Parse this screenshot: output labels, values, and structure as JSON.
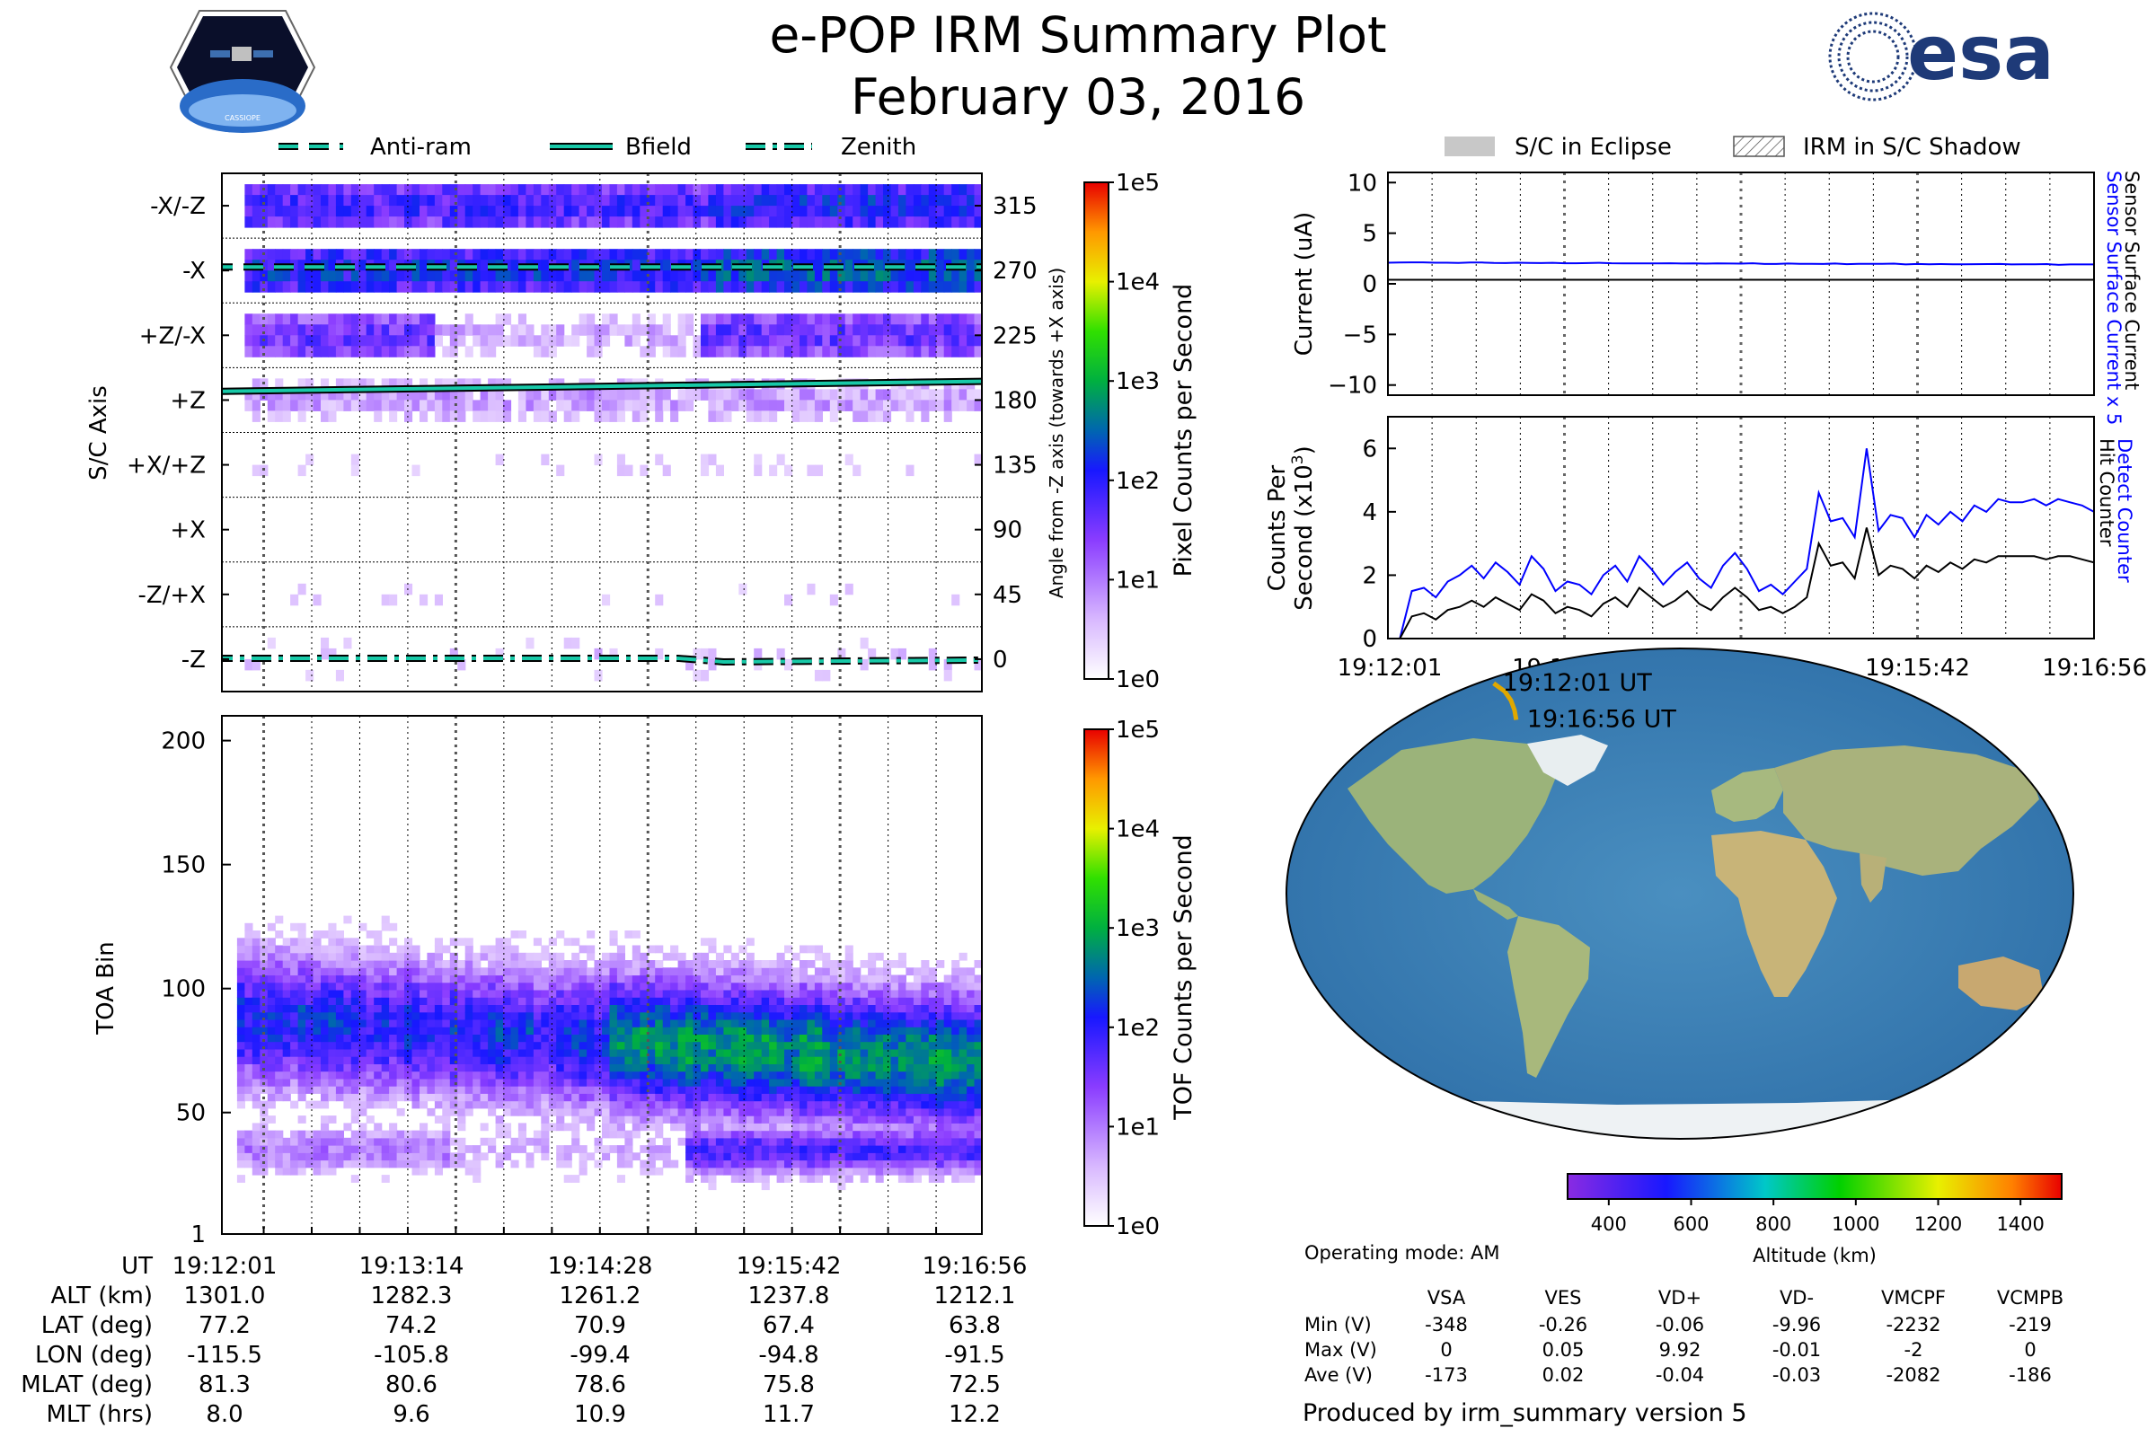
{
  "title": "e-POP IRM Summary Plot",
  "date": "February 03, 2016",
  "brand": {
    "esa_text": "esa",
    "mission_badge": "CASSIOPE",
    "esa_logo_color": "#1e3a78"
  },
  "colors": {
    "teal": "#18c9a8",
    "blue": "#0000ff",
    "black": "#000000",
    "eclipse": "#c8c8c8",
    "gold": "#e0a800"
  },
  "top_legend": [
    "Anti-ram",
    "Bfield",
    "Zenith"
  ],
  "right_legend": [
    "S/C in Eclipse",
    "IRM in S/C Shadow"
  ],
  "colorbars": {
    "pixel": {
      "label": "Pixel Counts per Second",
      "ticks": [
        "1e5",
        "1e4",
        "1e3",
        "1e2",
        "1e1",
        "1e0"
      ]
    },
    "tof": {
      "label": "TOF Counts per Second",
      "ticks": [
        "1e5",
        "1e4",
        "1e3",
        "1e2",
        "1e1",
        "1e0"
      ]
    },
    "altitude": {
      "label": "Altitude (km)",
      "ticks": [
        "400",
        "600",
        "800",
        "1000",
        "1200",
        "1400"
      ],
      "range": [
        300,
        1500
      ]
    }
  },
  "chart_data": [
    {
      "type": "heatmap",
      "name": "sc_axis",
      "ylabel": "S/C Axis",
      "y2label": "Angle from -Z axis (towards +X axis)",
      "axis_labels": [
        "-X/-Z",
        "-X",
        "+Z/-X",
        "+Z",
        "+X/+Z",
        "+X",
        "-Z/+X",
        "-Z"
      ],
      "angle_ticks": [
        315,
        270,
        225,
        180,
        135,
        90,
        45,
        0
      ],
      "row_levels": [
        1.9,
        2.2,
        1.7,
        0.8,
        0.3,
        0.05,
        0.3,
        0.5
      ],
      "antiram_deg": 270,
      "zenith_deg": 0,
      "bfield_deg": [
        [
          0,
          186
        ],
        [
          300,
          193
        ]
      ],
      "scale": "log",
      "clim": [
        1,
        100000
      ]
    },
    {
      "type": "heatmap",
      "name": "toa",
      "ylabel": "TOA Bin",
      "yticks": [
        1,
        50,
        100,
        150,
        200
      ],
      "ylim": [
        1,
        210
      ],
      "main_band": {
        "center_start": 88,
        "center_end": 70,
        "width": 35
      },
      "low_band": {
        "center": 35,
        "width": 15
      },
      "scale": "log",
      "clim": [
        1,
        100000
      ]
    },
    {
      "type": "line",
      "name": "current",
      "ylabel": "Current (uA)",
      "y2label_blue": "Sensor Surface Current x 5",
      "y2label_black": "Sensor Surface Current",
      "ylim": [
        -11,
        11
      ],
      "yticks": [
        10,
        5,
        0,
        -5,
        -10
      ],
      "series": [
        {
          "name": "Sensor Surface Current x 5",
          "color": "blue",
          "start": 2.1,
          "end": 1.9
        },
        {
          "name": "Sensor Surface Current",
          "color": "black",
          "start": 0.4,
          "end": 0.4
        }
      ]
    },
    {
      "type": "line",
      "name": "counts",
      "ylabel": "Counts Per",
      "ylabel2": "Second (x10",
      "ylabel_exp": "3",
      "y2label_blue": "Detect Counter",
      "y2label_black": "Hit Counter",
      "ylim": [
        0,
        7
      ],
      "yticks": [
        0,
        2,
        4,
        6
      ],
      "series": [
        {
          "name": "Detect Counter",
          "color": "blue",
          "values": [
            0,
            0,
            1.5,
            1.6,
            1.3,
            1.8,
            2.0,
            2.3,
            1.9,
            2.4,
            2.1,
            1.7,
            2.6,
            2.2,
            1.5,
            1.8,
            1.7,
            1.4,
            2.0,
            2.3,
            1.8,
            2.6,
            2.2,
            1.7,
            2.1,
            2.4,
            1.9,
            1.6,
            2.3,
            2.7,
            2.2,
            1.5,
            1.7,
            1.4,
            1.8,
            2.2,
            4.6,
            3.7,
            3.8,
            3.2,
            6.0,
            3.4,
            3.9,
            3.8,
            3.2,
            3.9,
            3.6,
            4.0,
            3.7,
            4.2,
            4.0,
            4.4,
            4.3,
            4.3,
            4.4,
            4.2,
            4.4,
            4.3,
            4.2,
            4.0
          ]
        },
        {
          "name": "Hit Counter",
          "color": "black",
          "values": [
            0,
            0,
            0.7,
            0.8,
            0.6,
            0.9,
            1.0,
            1.2,
            1.0,
            1.3,
            1.1,
            0.9,
            1.4,
            1.2,
            0.8,
            1.0,
            0.9,
            0.7,
            1.1,
            1.3,
            1.0,
            1.6,
            1.3,
            1.0,
            1.2,
            1.5,
            1.1,
            0.9,
            1.3,
            1.6,
            1.3,
            0.9,
            1.0,
            0.8,
            1.0,
            1.3,
            3.0,
            2.3,
            2.4,
            1.9,
            3.5,
            2.0,
            2.3,
            2.2,
            1.9,
            2.3,
            2.1,
            2.4,
            2.2,
            2.5,
            2.4,
            2.6,
            2.6,
            2.6,
            2.6,
            2.5,
            2.6,
            2.6,
            2.5,
            2.4
          ]
        }
      ]
    },
    {
      "type": "scatter",
      "name": "orbit_track",
      "start_label": "19:12:01 UT",
      "end_label": "19:16:56 UT",
      "lat": [
        77.2,
        74.2,
        70.9,
        67.4,
        63.8
      ],
      "lon": [
        -115.5,
        -105.8,
        -99.4,
        -94.8,
        -91.5
      ]
    }
  ],
  "time_ticks": [
    "19:12:01",
    "19:13:14",
    "19:14:28",
    "19:15:42",
    "19:16:56"
  ],
  "ephem": {
    "headers": [
      "UT",
      "ALT (km)",
      "LAT (deg)",
      "LON (deg)",
      "MLAT (deg)",
      "MLT (hrs)"
    ],
    "columns": [
      [
        "19:12:01",
        "1301.0",
        "77.2",
        "-115.5",
        "81.3",
        "8.0"
      ],
      [
        "19:13:14",
        "1282.3",
        "74.2",
        "-105.8",
        "80.6",
        "9.6"
      ],
      [
        "19:14:28",
        "1261.2",
        "70.9",
        "-99.4",
        "78.6",
        "10.9"
      ],
      [
        "19:15:42",
        "1237.8",
        "67.4",
        "-94.8",
        "75.8",
        "11.7"
      ],
      [
        "19:16:56",
        "1212.1",
        "63.8",
        "-91.5",
        "72.5",
        "12.2"
      ]
    ]
  },
  "operating_mode": "Operating mode: AM",
  "voltages": {
    "headers": [
      "VSA",
      "VES",
      "VD+",
      "VD-",
      "VMCPF",
      "VCMPB"
    ],
    "rows": [
      {
        "label": "Min (V)",
        "values": [
          "-348",
          "-0.26",
          "-0.06",
          "-9.96",
          "-2232",
          "-219"
        ]
      },
      {
        "label": "Max (V)",
        "values": [
          "0",
          "0.05",
          "9.92",
          "-0.01",
          "-2",
          "0"
        ]
      },
      {
        "label": "Ave (V)",
        "values": [
          "-173",
          "0.02",
          "-0.04",
          "-0.03",
          "-2082",
          "-186"
        ]
      }
    ]
  },
  "footer": "Produced by irm_summary version 5"
}
